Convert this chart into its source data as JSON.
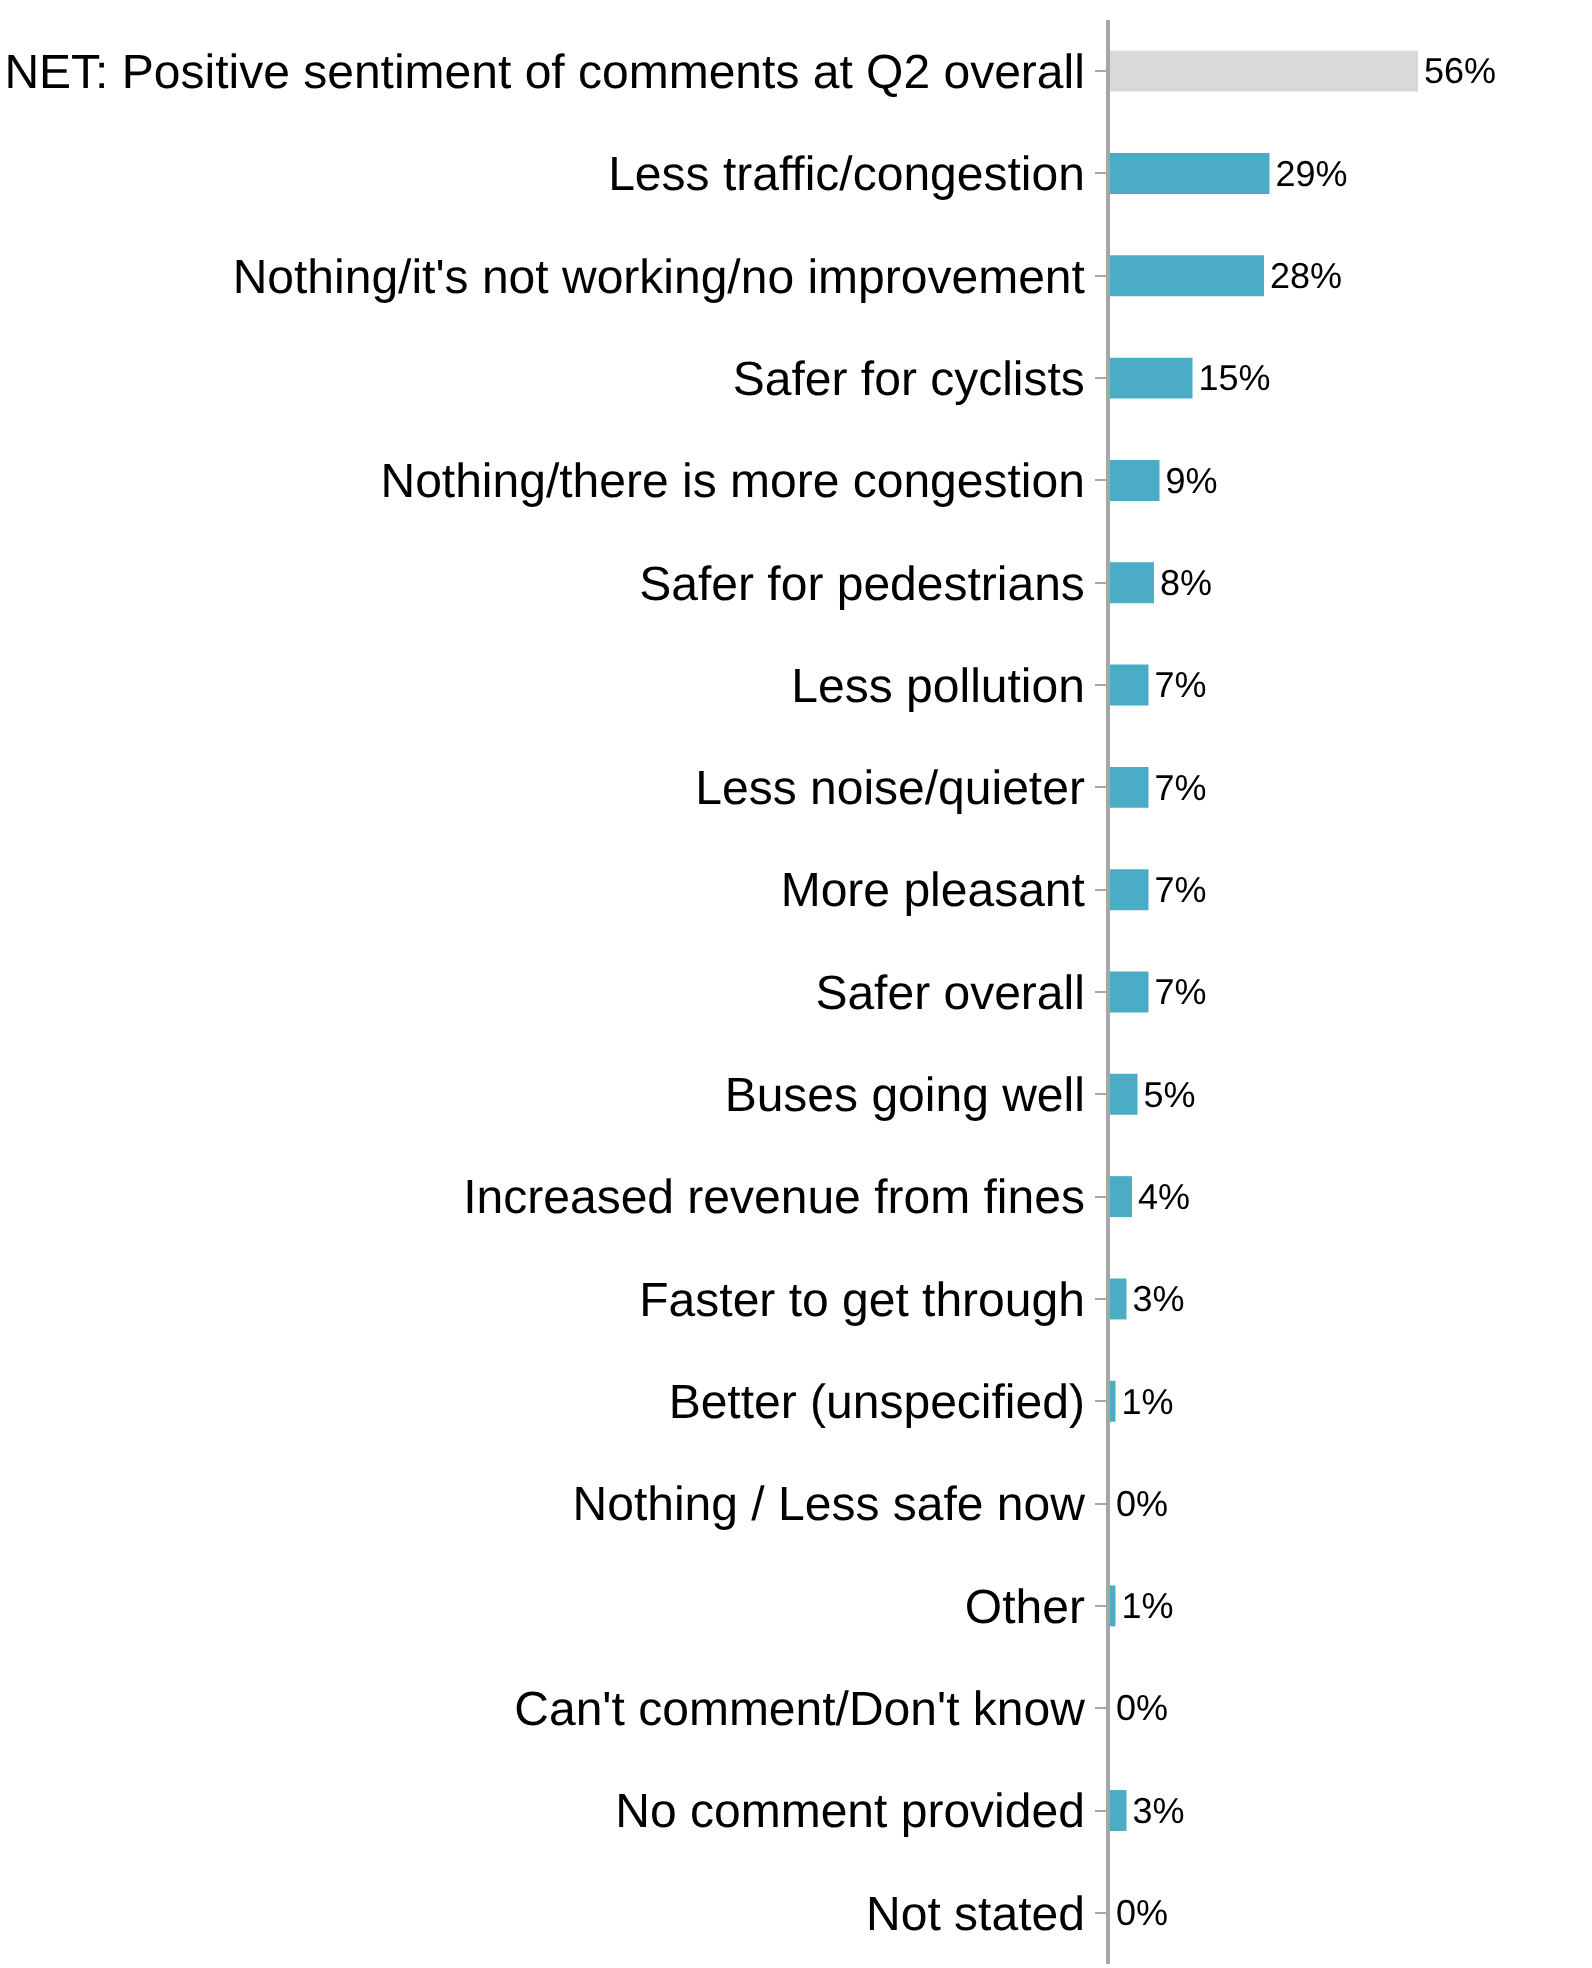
{
  "chart_data": {
    "type": "bar",
    "orientation": "horizontal",
    "categories": [
      "NET: Positive sentiment of comments at Q2 overall",
      "Less traffic/congestion",
      "Nothing/it's not working/no improvement",
      "Safer for cyclists",
      "Nothing/there is more congestion",
      "Safer for pedestrians",
      "Less pollution",
      "Less noise/quieter",
      "More pleasant",
      "Safer overall",
      "Buses going well",
      "Increased revenue from fines",
      "Faster to get through",
      "Better (unspecified)",
      "Nothing / Less safe now",
      "Other",
      "Can't comment/Don't know",
      "No comment provided",
      "Not stated"
    ],
    "values": [
      56,
      29,
      28,
      15,
      9,
      8,
      7,
      7,
      7,
      7,
      5,
      4,
      3,
      1,
      0,
      1,
      0,
      3,
      0
    ],
    "value_labels": [
      "56%",
      "29%",
      "28%",
      "15%",
      "9%",
      "8%",
      "7%",
      "7%",
      "7%",
      "7%",
      "5%",
      "4%",
      "3%",
      "1%",
      "0%",
      "1%",
      "0%",
      "3%",
      "0%"
    ],
    "colors": [
      "#d9d9d9",
      "#4bacc6",
      "#4bacc6",
      "#4bacc6",
      "#4bacc6",
      "#4bacc6",
      "#4bacc6",
      "#4bacc6",
      "#4bacc6",
      "#4bacc6",
      "#4bacc6",
      "#4bacc6",
      "#4bacc6",
      "#4bacc6",
      "#4bacc6",
      "#4bacc6",
      "#4bacc6",
      "#4bacc6",
      "#4bacc6"
    ]
  }
}
